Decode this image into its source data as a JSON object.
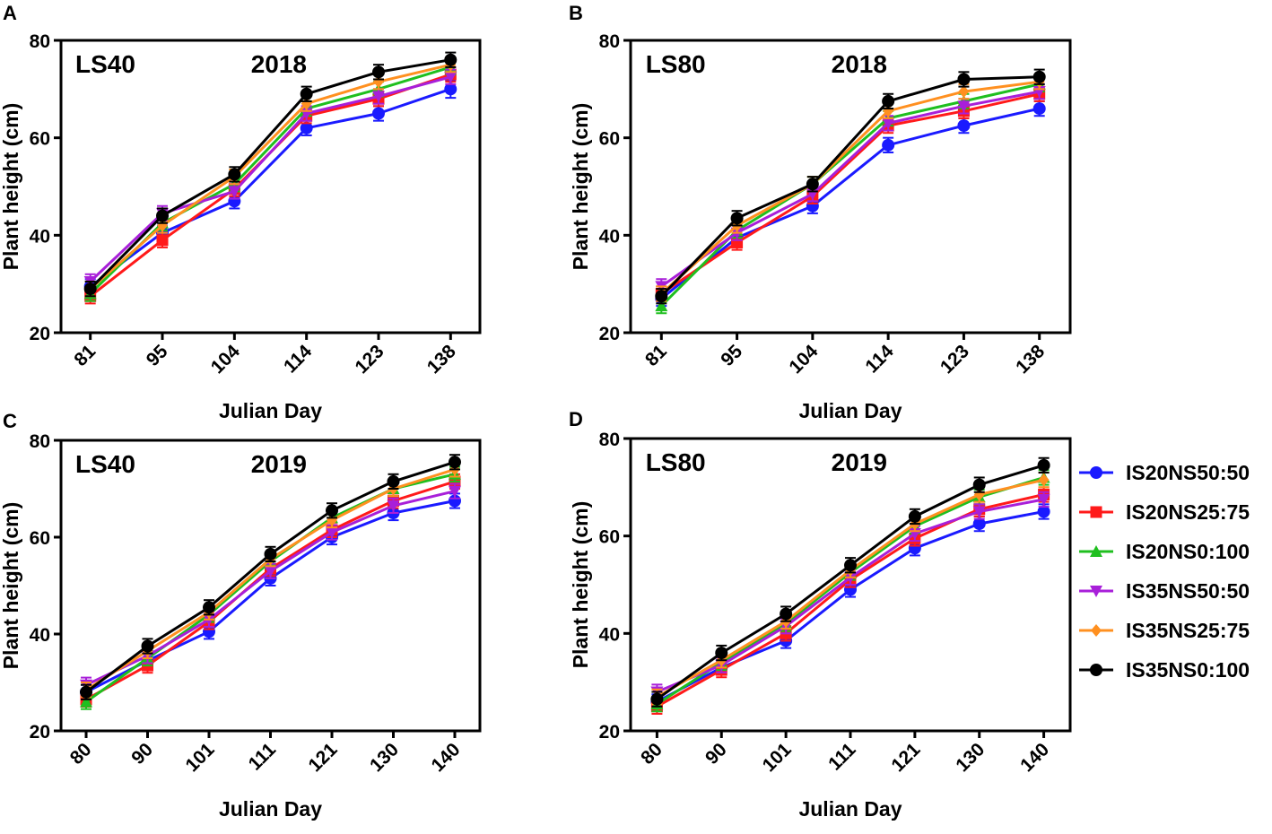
{
  "figure": {
    "background": "#ffffff"
  },
  "colors": {
    "IS20NS50:50": "#1a1aff",
    "IS20NS25:75": "#ff1a1a",
    "IS20NS0:100": "#1fbf1f",
    "IS35NS50:50": "#a81fd9",
    "IS35NS25:75": "#ff9020",
    "IS35NS0:100": "#000000"
  },
  "legend": {
    "position": "right",
    "entries": [
      {
        "label": "IS20NS50:50",
        "marker": "circle"
      },
      {
        "label": "IS20NS25:75",
        "marker": "square"
      },
      {
        "label": "IS20NS0:100",
        "marker": "triangle-up"
      },
      {
        "label": "IS35NS50:50",
        "marker": "triangle-down"
      },
      {
        "label": "IS35NS25:75",
        "marker": "diamond"
      },
      {
        "label": "IS35NS0:100",
        "marker": "circle"
      }
    ]
  },
  "chart_data": [
    {
      "panel": "A",
      "type": "line",
      "site": "LS40",
      "year": "2018",
      "xlabel": "Julian Day",
      "ylabel": "Plant height (cm)",
      "ylim": [
        20,
        80
      ],
      "yticks": [
        20,
        40,
        60,
        80
      ],
      "categories": [
        "81",
        "95",
        "104",
        "114",
        "123",
        "138"
      ],
      "series": [
        {
          "name": "IS20NS50:50",
          "values": [
            29.5,
            40.5,
            47.0,
            62.0,
            65.0,
            70.0
          ],
          "err": [
            1.5,
            1.5,
            1.5,
            1.5,
            1.5,
            1.8
          ]
        },
        {
          "name": "IS20NS25:75",
          "values": [
            27.5,
            39.0,
            49.5,
            64.5,
            68.0,
            73.0
          ],
          "err": [
            1.5,
            1.5,
            1.5,
            1.5,
            1.5,
            1.5
          ]
        },
        {
          "name": "IS20NS0:100",
          "values": [
            28.0,
            42.5,
            50.5,
            66.0,
            70.0,
            74.5
          ],
          "err": [
            1.5,
            1.5,
            1.5,
            1.5,
            1.5,
            1.5
          ]
        },
        {
          "name": "IS35NS50:50",
          "values": [
            30.5,
            44.5,
            49.0,
            65.0,
            68.5,
            72.5
          ],
          "err": [
            1.5,
            1.5,
            1.5,
            1.5,
            1.5,
            1.5
          ]
        },
        {
          "name": "IS35NS25:75",
          "values": [
            29.0,
            42.0,
            52.0,
            67.0,
            71.5,
            75.0
          ],
          "err": [
            1.5,
            1.5,
            1.5,
            1.5,
            1.5,
            1.5
          ]
        },
        {
          "name": "IS35NS0:100",
          "values": [
            29.0,
            44.0,
            52.5,
            69.0,
            73.5,
            76.0
          ],
          "err": [
            1.5,
            1.5,
            1.5,
            1.5,
            1.5,
            1.5
          ]
        }
      ]
    },
    {
      "panel": "B",
      "type": "line",
      "site": "LS80",
      "year": "2018",
      "xlabel": "Julian Day",
      "ylabel": "Plant height (cm)",
      "ylim": [
        20,
        80
      ],
      "yticks": [
        20,
        40,
        60,
        80
      ],
      "categories": [
        "81",
        "95",
        "104",
        "114",
        "123",
        "138"
      ],
      "series": [
        {
          "name": "IS20NS50:50",
          "values": [
            27.0,
            39.5,
            46.0,
            58.5,
            62.5,
            66.0
          ],
          "err": [
            1.5,
            1.5,
            1.5,
            1.5,
            1.5,
            1.5
          ]
        },
        {
          "name": "IS20NS25:75",
          "values": [
            28.0,
            38.5,
            48.0,
            62.5,
            65.5,
            69.0
          ],
          "err": [
            1.5,
            1.5,
            1.5,
            1.5,
            1.5,
            1.5
          ]
        },
        {
          "name": "IS20NS0:100",
          "values": [
            25.5,
            41.0,
            50.5,
            64.0,
            67.5,
            71.0
          ],
          "err": [
            1.5,
            1.5,
            1.5,
            1.5,
            1.5,
            1.5
          ]
        },
        {
          "name": "IS35NS50:50",
          "values": [
            29.5,
            40.5,
            48.5,
            63.0,
            66.5,
            69.5
          ],
          "err": [
            1.5,
            1.5,
            1.5,
            1.5,
            1.5,
            1.5
          ]
        },
        {
          "name": "IS35NS25:75",
          "values": [
            28.0,
            42.0,
            50.5,
            65.5,
            69.5,
            71.5
          ],
          "err": [
            1.5,
            1.5,
            1.5,
            1.5,
            1.5,
            1.5
          ]
        },
        {
          "name": "IS35NS0:100",
          "values": [
            27.5,
            43.5,
            50.5,
            67.5,
            72.0,
            72.5
          ],
          "err": [
            1.5,
            1.5,
            1.5,
            1.5,
            1.5,
            1.5
          ]
        }
      ]
    },
    {
      "panel": "C",
      "type": "line",
      "site": "LS40",
      "year": "2019",
      "xlabel": "Julian Day",
      "ylabel": "Plant height (cm)",
      "ylim": [
        20,
        80
      ],
      "yticks": [
        20,
        40,
        60,
        80
      ],
      "categories": [
        "80",
        "90",
        "101",
        "111",
        "121",
        "130",
        "140"
      ],
      "series": [
        {
          "name": "IS20NS50:50",
          "values": [
            28.0,
            34.5,
            40.5,
            51.5,
            60.0,
            65.0,
            67.5
          ],
          "err": [
            1.5,
            1.5,
            1.5,
            1.5,
            1.5,
            1.5,
            1.5
          ]
        },
        {
          "name": "IS20NS25:75",
          "values": [
            26.5,
            33.5,
            42.5,
            53.5,
            61.5,
            67.5,
            71.5
          ],
          "err": [
            1.5,
            1.5,
            1.5,
            1.5,
            1.5,
            1.5,
            1.5
          ]
        },
        {
          "name": "IS20NS0:100",
          "values": [
            26.0,
            35.0,
            44.0,
            55.0,
            64.0,
            70.0,
            73.0
          ],
          "err": [
            1.5,
            1.5,
            1.5,
            1.5,
            1.5,
            1.5,
            1.5
          ]
        },
        {
          "name": "IS35NS50:50",
          "values": [
            29.5,
            35.5,
            43.0,
            53.0,
            61.0,
            66.5,
            69.5
          ],
          "err": [
            1.5,
            1.5,
            1.5,
            1.5,
            1.5,
            1.5,
            1.5
          ]
        },
        {
          "name": "IS35NS25:75",
          "values": [
            28.5,
            36.5,
            44.5,
            55.5,
            63.5,
            70.0,
            74.0
          ],
          "err": [
            1.5,
            1.5,
            1.5,
            1.5,
            1.5,
            1.5,
            1.5
          ]
        },
        {
          "name": "IS35NS0:100",
          "values": [
            28.0,
            37.5,
            45.5,
            56.5,
            65.5,
            71.5,
            75.5
          ],
          "err": [
            1.5,
            1.5,
            1.5,
            1.5,
            1.5,
            1.5,
            1.5
          ]
        }
      ]
    },
    {
      "panel": "D",
      "type": "line",
      "site": "LS80",
      "year": "2019",
      "xlabel": "Julian Day",
      "ylabel": "Plant height (cm)",
      "ylim": [
        20,
        80
      ],
      "yticks": [
        20,
        40,
        60,
        80
      ],
      "categories": [
        "80",
        "90",
        "101",
        "111",
        "121",
        "130",
        "140"
      ],
      "series": [
        {
          "name": "IS20NS50:50",
          "values": [
            26.0,
            33.0,
            38.5,
            49.0,
            57.5,
            62.5,
            65.0
          ],
          "err": [
            1.5,
            1.5,
            1.5,
            1.5,
            1.5,
            1.5,
            1.5
          ]
        },
        {
          "name": "IS20NS25:75",
          "values": [
            25.0,
            32.5,
            40.0,
            51.0,
            59.5,
            65.5,
            68.5
          ],
          "err": [
            1.5,
            1.5,
            1.5,
            1.5,
            1.5,
            1.5,
            1.5
          ]
        },
        {
          "name": "IS20NS0:100",
          "values": [
            25.5,
            34.0,
            42.0,
            52.5,
            62.0,
            68.0,
            72.0
          ],
          "err": [
            1.5,
            1.5,
            1.5,
            1.5,
            1.5,
            1.5,
            1.5
          ]
        },
        {
          "name": "IS35NS50:50",
          "values": [
            28.0,
            33.5,
            41.5,
            51.5,
            60.5,
            65.0,
            67.5
          ],
          "err": [
            1.5,
            1.5,
            1.5,
            1.5,
            1.5,
            1.5,
            1.5
          ]
        },
        {
          "name": "IS35NS25:75",
          "values": [
            27.0,
            34.5,
            42.5,
            53.0,
            62.5,
            68.5,
            71.5
          ],
          "err": [
            1.5,
            1.5,
            1.5,
            1.5,
            1.5,
            1.5,
            1.5
          ]
        },
        {
          "name": "IS35NS0:100",
          "values": [
            26.5,
            36.0,
            44.0,
            54.0,
            64.0,
            70.5,
            74.5
          ],
          "err": [
            1.5,
            1.5,
            1.5,
            1.5,
            1.5,
            1.5,
            1.5
          ]
        }
      ]
    }
  ]
}
